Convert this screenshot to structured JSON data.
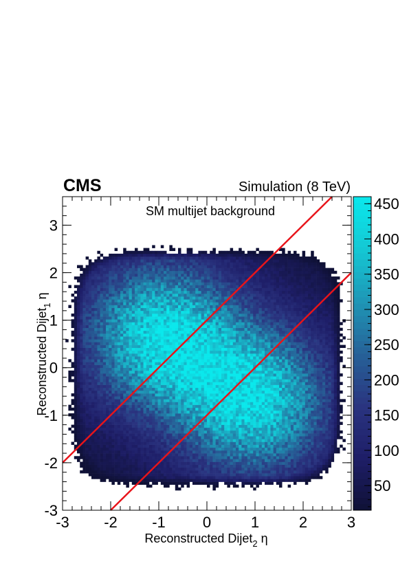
{
  "chart_data": {
    "type": "heatmap",
    "experiment_label": "CMS",
    "simulation_label": "Simulation (8 TeV)",
    "annotation": "SM multijet background",
    "xlabel": {
      "prefix": "Reconstructed Dijet",
      "sub": "2",
      "suffix": " η"
    },
    "ylabel": {
      "prefix": "Reconstructed Dijet",
      "sub": "1",
      "suffix": " η"
    },
    "xlim": [
      -3,
      3
    ],
    "ylim": [
      -3,
      3.6
    ],
    "x_ticks": [
      "-3",
      "-2",
      "-1",
      "0",
      "1",
      "2",
      "3"
    ],
    "y_ticks": [
      "-3",
      "-2",
      "-1",
      "0",
      "1",
      "2",
      "3"
    ],
    "colorbar": {
      "range": [
        15,
        460
      ],
      "ticks": [
        "50",
        "100",
        "150",
        "200",
        "250",
        "300",
        "350",
        "400",
        "450"
      ]
    },
    "density_model": {
      "lobes": [
        {
          "x": -1.0,
          "y": 0.7,
          "weight": 420
        },
        {
          "x": 1.0,
          "y": -0.7,
          "weight": 420
        }
      ],
      "x_extent": 2.55,
      "y_extent": 2.25
    },
    "cut_lines": [
      {
        "name": "upper-cut",
        "x": [
          -3,
          2.6
        ],
        "y": [
          -2,
          3.6
        ]
      },
      {
        "name": "lower-cut",
        "x": [
          -2,
          3
        ],
        "y": [
          -3,
          2.0
        ]
      }
    ],
    "colors": {
      "cut_line": "#e8141a",
      "frame": "#000000"
    }
  }
}
